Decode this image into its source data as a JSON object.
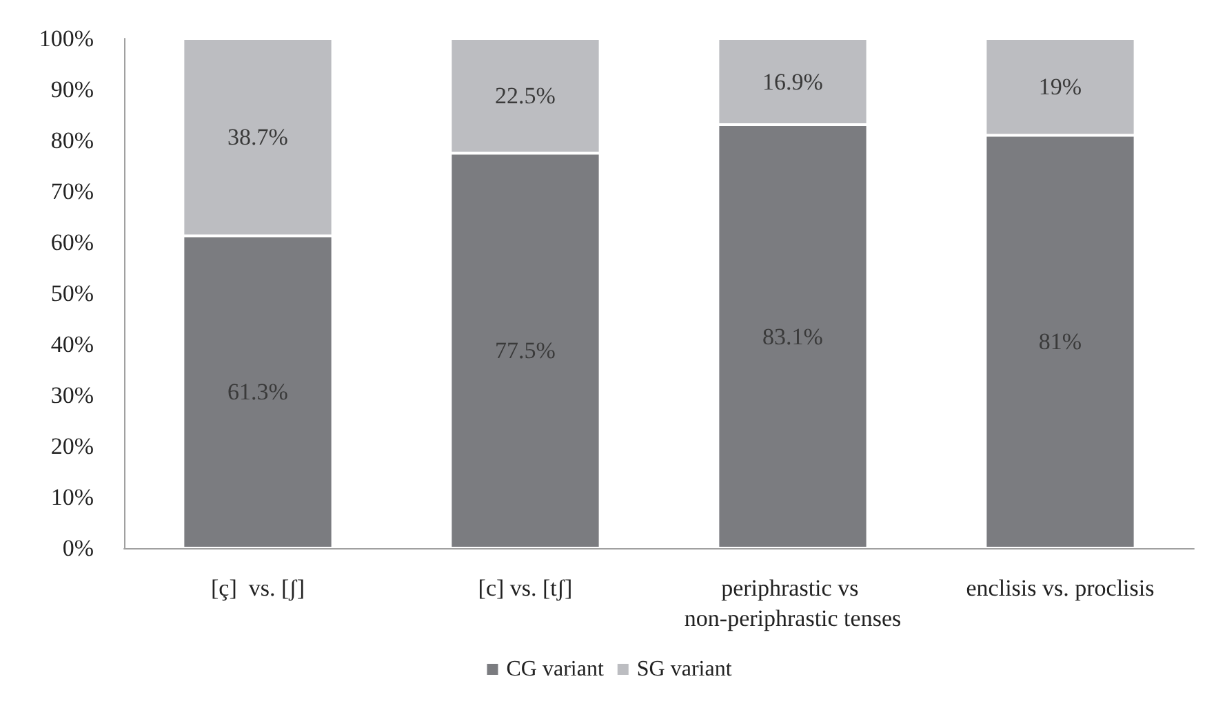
{
  "chart_data": {
    "type": "bar",
    "stacked": true,
    "categories": [
      "[ç]  vs. [ʃ]",
      "[c] vs. [tʃ]",
      "periphrastic vs non-periphrastic tenses",
      "enclisis vs. proclisis"
    ],
    "series": [
      {
        "name": "CG variant",
        "color": "#7b7c80",
        "values": [
          61.3,
          77.5,
          83.1,
          81
        ],
        "value_labels": [
          "61.3%",
          "77.5%",
          "83.1%",
          "81%"
        ]
      },
      {
        "name": "SG variant",
        "color": "#bcbdc1",
        "values": [
          38.7,
          22.5,
          16.9,
          19
        ],
        "value_labels": [
          "38.7%",
          "22.5%",
          "16.9%",
          "19%"
        ]
      }
    ],
    "ylim": [
      0,
      100
    ],
    "yticks": [
      {
        "value": 0,
        "label": "0%"
      },
      {
        "value": 10,
        "label": "10%"
      },
      {
        "value": 20,
        "label": "20%"
      },
      {
        "value": 30,
        "label": "30%"
      },
      {
        "value": 40,
        "label": "40%"
      },
      {
        "value": 50,
        "label": "50%"
      },
      {
        "value": 60,
        "label": "60%"
      },
      {
        "value": 70,
        "label": "70%"
      },
      {
        "value": 80,
        "label": "80%"
      },
      {
        "value": 90,
        "label": "90%"
      },
      {
        "value": 100,
        "label": "100%"
      }
    ],
    "grid": false,
    "legend": "bottom"
  }
}
